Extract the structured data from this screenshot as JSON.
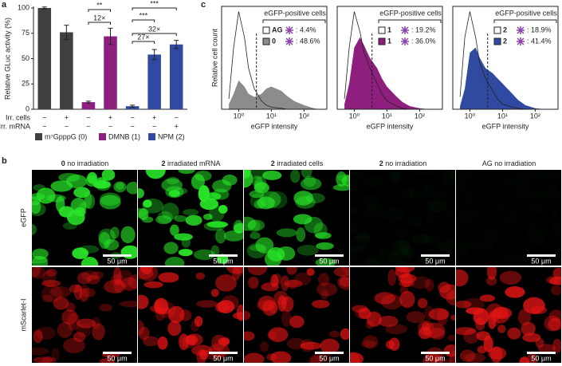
{
  "panel_labels": [
    "a",
    "b",
    "c"
  ],
  "chart_data": [
    {
      "type": "bar",
      "ylabel": "Relative GLuc activity (%)",
      "ylim": [
        0,
        100
      ],
      "yticks": [
        0,
        25,
        50,
        75,
        100
      ],
      "categories": [
        null,
        null,
        null,
        null,
        null,
        null,
        null
      ],
      "values": [
        100,
        76,
        7,
        72,
        3,
        54,
        64
      ],
      "errors": [
        1,
        7,
        1,
        8,
        1,
        5,
        4
      ],
      "colors": [
        "#404040",
        "#404040",
        "#8e1f7e",
        "#8e1f7e",
        "#2f4aa0",
        "#2f4aa0",
        "#2f4aa0"
      ],
      "rows": [
        {
          "name": "Irr. cells",
          "labels": [
            "−",
            "+",
            "−",
            "+",
            "−",
            "+",
            "−"
          ]
        },
        {
          "name": "Irr. mRNA",
          "labels": [
            "−",
            "−",
            "−",
            "−",
            "−",
            "−",
            "+"
          ]
        }
      ],
      "legend": [
        {
          "name": "m⁷GpppG (0)",
          "color": "#404040"
        },
        {
          "name": "DMNB (1)",
          "color": "#8e1f7e"
        },
        {
          "name": "NPM (2)",
          "color": "#2f4aa0"
        }
      ],
      "annotations": [
        "**",
        "12×",
        "***",
        "***",
        "27×",
        "32×"
      ]
    },
    {
      "type": "histogram",
      "ylabel": "Relative cell count",
      "xlabel": "eGFP intensity",
      "log_x": true,
      "xlim": [
        0.3,
        500
      ],
      "ylim": [
        0,
        100
      ],
      "xticks": [
        {
          "value": 1,
          "label": "10⁰"
        },
        {
          "value": 10,
          "label": "10¹"
        },
        {
          "value": 100,
          "label": "10²"
        }
      ],
      "threshold": 3.5,
      "legend_title": "eGFP-positive cells",
      "x": [
        0.5,
        0.7,
        1,
        1.5,
        2,
        3,
        5,
        7,
        10,
        20,
        30,
        50,
        100,
        200,
        300
      ],
      "series": [
        {
          "name": "0",
          "label": ": 48.6%",
          "color": "#8c8c8c",
          "values": [
            5,
            15,
            28,
            22,
            15,
            12,
            15,
            20,
            22,
            18,
            13,
            8,
            4,
            1,
            0
          ]
        },
        {
          "name": "AG",
          "label": ": 4.4%",
          "color": "#ffffff",
          "values": [
            10,
            60,
            95,
            70,
            40,
            20,
            8,
            4,
            2,
            1,
            0,
            0,
            0,
            0,
            0
          ]
        }
      ]
    },
    {
      "type": "histogram",
      "xlabel": "eGFP intensity",
      "log_x": true,
      "xlim": [
        0.3,
        500
      ],
      "ylim": [
        0,
        100
      ],
      "xticks": [
        {
          "value": 1,
          "label": "10⁰"
        },
        {
          "value": 10,
          "label": "10¹"
        },
        {
          "value": 100,
          "label": "10²"
        }
      ],
      "threshold": 3.5,
      "legend_title": "eGFP-positive cells",
      "x": [
        0.5,
        0.7,
        1,
        1.5,
        2,
        3,
        5,
        7,
        10,
        20,
        30,
        50,
        100,
        200,
        300
      ],
      "series": [
        {
          "name": "1",
          "label": ": 36.0%",
          "color": "#8e1f7e",
          "values": [
            5,
            25,
            60,
            70,
            62,
            50,
            40,
            30,
            22,
            12,
            7,
            3,
            1,
            0,
            0
          ]
        },
        {
          "name": "1",
          "label": ": 19.2%",
          "color": "#ffffff",
          "values": [
            10,
            60,
            95,
            75,
            55,
            40,
            25,
            15,
            8,
            3,
            1,
            0,
            0,
            0,
            0
          ]
        }
      ]
    },
    {
      "type": "histogram",
      "xlabel": "eGFP intensity",
      "log_x": true,
      "xlim": [
        0.3,
        500
      ],
      "ylim": [
        0,
        100
      ],
      "xticks": [
        {
          "value": 1,
          "label": "10⁰"
        },
        {
          "value": 10,
          "label": "10¹"
        },
        {
          "value": 100,
          "label": "10²"
        }
      ],
      "threshold": 3.5,
      "legend_title": "eGFP-positive cells",
      "x": [
        0.5,
        0.7,
        1,
        1.5,
        2,
        3,
        5,
        7,
        10,
        20,
        30,
        50,
        100,
        200,
        300
      ],
      "series": [
        {
          "name": "2",
          "label": ": 41.4%",
          "color": "#2f4aa0",
          "values": [
            3,
            20,
            55,
            60,
            50,
            40,
            35,
            30,
            25,
            15,
            9,
            4,
            1,
            0,
            0
          ]
        },
        {
          "name": "2",
          "label": ": 18.9%",
          "color": "#ffffff",
          "values": [
            12,
            70,
            95,
            70,
            45,
            30,
            18,
            10,
            5,
            2,
            1,
            0,
            0,
            0,
            0
          ]
        }
      ]
    }
  ],
  "microscopy": {
    "columns": [
      {
        "bold": "0",
        "text": " no irradiation"
      },
      {
        "bold": "2",
        "text": " irradiated mRNA"
      },
      {
        "bold": "2",
        "text": " irradiated cells"
      },
      {
        "bold": "2",
        "text": " no irradiation"
      },
      {
        "bold": "",
        "text": "AG no irradiation"
      }
    ],
    "rows": [
      "eGFP",
      "mScarlet-I"
    ],
    "scale_bar": "50 μm"
  }
}
